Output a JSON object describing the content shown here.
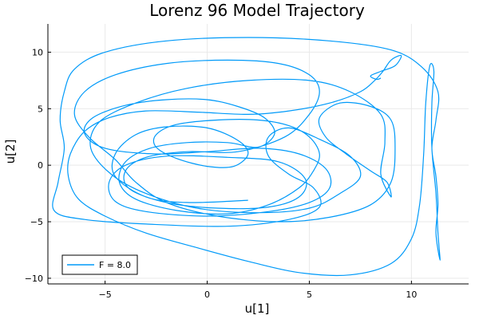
{
  "chart_data": {
    "type": "line",
    "title": "Lorenz 96 Model Trajectory",
    "xlabel": "u[1]",
    "ylabel": "u[2]",
    "xlim": [
      -7.8,
      12.8
    ],
    "ylim": [
      -10.5,
      12.5
    ],
    "xticks": [
      -5,
      0,
      5,
      10
    ],
    "yticks": [
      -10,
      -5,
      0,
      5,
      10
    ],
    "grid": true,
    "legend_position": "bottom-left",
    "series": [
      {
        "name": "F = 8.0",
        "color": "#009af9",
        "points": [
          [
            2.0,
            -3.1
          ],
          [
            -1.0,
            -3.3
          ],
          [
            -3.0,
            -2.8
          ],
          [
            -4.5,
            -1.0
          ],
          [
            -4.5,
            1.0
          ],
          [
            -3.5,
            2.7
          ],
          [
            -2.0,
            3.4
          ],
          [
            0.0,
            3.3
          ],
          [
            1.5,
            2.2
          ],
          [
            2.0,
            1.0
          ],
          [
            1.3,
            -0.1
          ],
          [
            0.0,
            -0.1
          ],
          [
            -1.5,
            0.6
          ],
          [
            -2.5,
            1.6
          ],
          [
            -2.5,
            2.7
          ],
          [
            -1.5,
            3.6
          ],
          [
            0.5,
            4.0
          ],
          [
            2.5,
            4.0
          ],
          [
            4.0,
            3.5
          ],
          [
            5.0,
            2.5
          ],
          [
            5.5,
            1.0
          ],
          [
            5.2,
            -0.5
          ],
          [
            4.5,
            -2.0
          ],
          [
            3.0,
            -3.5
          ],
          [
            1.0,
            -4.3
          ],
          [
            -1.5,
            -4.0
          ],
          [
            -3.5,
            -3.0
          ],
          [
            -4.3,
            -1.5
          ],
          [
            -4.0,
            0.3
          ],
          [
            -2.8,
            1.5
          ],
          [
            -1.0,
            2.0
          ],
          [
            1.0,
            2.0
          ],
          [
            2.5,
            1.6
          ],
          [
            3.3,
            2.8
          ],
          [
            2.8,
            4.2
          ],
          [
            1.5,
            5.2
          ],
          [
            0.0,
            5.8
          ],
          [
            -2.0,
            5.8
          ],
          [
            -4.0,
            5.3
          ],
          [
            -5.6,
            4.2
          ],
          [
            -6.0,
            2.8
          ],
          [
            -5.0,
            1.5
          ],
          [
            -2.5,
            1.0
          ],
          [
            0.0,
            1.2
          ],
          [
            2.5,
            1.5
          ],
          [
            4.5,
            1.0
          ],
          [
            5.8,
            -0.3
          ],
          [
            6.0,
            -2.0
          ],
          [
            5.0,
            -3.3
          ],
          [
            3.0,
            -4.1
          ],
          [
            0.0,
            -4.5
          ],
          [
            -3.0,
            -4.1
          ],
          [
            -4.5,
            -3.2
          ],
          [
            -4.8,
            -1.5
          ],
          [
            -4.0,
            0.0
          ],
          [
            -2.0,
            0.8
          ],
          [
            1.0,
            0.7
          ],
          [
            3.5,
            0.3
          ],
          [
            4.8,
            -1.2
          ],
          [
            4.5,
            -2.8
          ],
          [
            3.0,
            -3.7
          ],
          [
            0.5,
            -3.8
          ],
          [
            -2.0,
            -3.3
          ],
          [
            -3.8,
            -2.1
          ],
          [
            -4.0,
            -0.5
          ],
          [
            -3.0,
            0.7
          ],
          [
            -1.0,
            1.2
          ],
          [
            1.5,
            1.2
          ],
          [
            3.8,
            2.5
          ],
          [
            5.0,
            4.5
          ],
          [
            5.5,
            6.5
          ],
          [
            5.0,
            8.0
          ],
          [
            3.5,
            9.0
          ],
          [
            1.0,
            9.3
          ],
          [
            -2.0,
            9.0
          ],
          [
            -4.5,
            8.0
          ],
          [
            -6.0,
            6.5
          ],
          [
            -6.5,
            4.5
          ],
          [
            -5.8,
            2.5
          ],
          [
            -4.5,
            0.5
          ],
          [
            -3.5,
            -1.5
          ],
          [
            -2.0,
            -3.3
          ],
          [
            0.5,
            -4.5
          ],
          [
            3.5,
            -5.0
          ],
          [
            6.0,
            -4.6
          ],
          [
            8.0,
            -3.5
          ],
          [
            9.0,
            -1.5
          ],
          [
            9.2,
            1.5
          ],
          [
            9.0,
            4.0
          ],
          [
            8.0,
            5.2
          ],
          [
            6.5,
            5.5
          ],
          [
            5.5,
            4.2
          ],
          [
            5.8,
            2.5
          ],
          [
            6.8,
            1.0
          ],
          [
            8.0,
            -0.5
          ],
          [
            8.8,
            -1.5
          ],
          [
            9.0,
            -2.8
          ],
          [
            8.5,
            -0.8
          ],
          [
            8.7,
            2.0
          ],
          [
            8.5,
            4.5
          ],
          [
            7.0,
            6.5
          ],
          [
            5.0,
            7.5
          ],
          [
            2.0,
            7.5
          ],
          [
            -1.0,
            6.8
          ],
          [
            -3.5,
            5.5
          ],
          [
            -5.3,
            3.8
          ],
          [
            -5.7,
            1.5
          ],
          [
            -4.7,
            -0.8
          ],
          [
            -3.0,
            -2.5
          ],
          [
            -0.5,
            -3.8
          ],
          [
            2.5,
            -4.2
          ],
          [
            5.0,
            -3.8
          ],
          [
            6.5,
            -2.5
          ],
          [
            7.5,
            -1.0
          ],
          [
            7.0,
            0.8
          ],
          [
            5.5,
            2.3
          ],
          [
            4.0,
            3.3
          ],
          [
            3.0,
            2.5
          ],
          [
            3.0,
            0.8
          ],
          [
            4.0,
            -0.8
          ],
          [
            5.2,
            -2.0
          ],
          [
            5.5,
            -3.7
          ],
          [
            4.0,
            -4.8
          ],
          [
            1.0,
            -5.4
          ],
          [
            -3.0,
            -5.2
          ],
          [
            -6.0,
            -4.8
          ],
          [
            -7.5,
            -4.0
          ],
          [
            -7.3,
            -1.5
          ],
          [
            -7.0,
            1.5
          ],
          [
            -7.2,
            4.0
          ],
          [
            -7.0,
            6.5
          ],
          [
            -6.5,
            8.5
          ],
          [
            -5.0,
            10.0
          ],
          [
            -2.0,
            11.0
          ],
          [
            2.0,
            11.3
          ],
          [
            6.0,
            11.0
          ],
          [
            9.0,
            10.2
          ],
          [
            10.5,
            8.7
          ],
          [
            11.3,
            6.5
          ],
          [
            11.2,
            4.0
          ],
          [
            11.0,
            1.5
          ],
          [
            11.2,
            -1.0
          ],
          [
            11.3,
            -3.5
          ],
          [
            11.2,
            -6.0
          ],
          [
            11.4,
            -8.4
          ],
          [
            11.3,
            -6.0
          ],
          [
            11.2,
            -2.5
          ],
          [
            11.0,
            1.5
          ],
          [
            11.0,
            5.5
          ],
          [
            11.1,
            8.3
          ],
          [
            10.9,
            8.8
          ],
          [
            10.7,
            5.5
          ],
          [
            10.6,
            1.0
          ],
          [
            10.4,
            -3.5
          ],
          [
            10.0,
            -6.5
          ],
          [
            9.0,
            -8.7
          ],
          [
            7.0,
            -9.7
          ],
          [
            4.5,
            -9.5
          ],
          [
            2.0,
            -8.5
          ],
          [
            -0.5,
            -7.3
          ],
          [
            -3.0,
            -6.0
          ],
          [
            -5.0,
            -4.5
          ],
          [
            -6.3,
            -3.0
          ],
          [
            -6.8,
            -1.0
          ],
          [
            -6.7,
            1.0
          ],
          [
            -6.0,
            3.0
          ],
          [
            -4.8,
            4.2
          ],
          [
            -3.0,
            4.8
          ],
          [
            -0.5,
            4.7
          ],
          [
            2.0,
            4.5
          ],
          [
            4.0,
            4.8
          ],
          [
            6.0,
            5.5
          ],
          [
            7.5,
            6.5
          ],
          [
            8.2,
            7.5
          ],
          [
            8.6,
            8.3
          ],
          [
            9.0,
            9.3
          ],
          [
            9.5,
            9.7
          ],
          [
            9.2,
            8.8
          ],
          [
            8.5,
            8.3
          ],
          [
            8.0,
            7.9
          ],
          [
            8.3,
            7.6
          ],
          [
            8.5,
            7.7
          ]
        ]
      }
    ]
  }
}
